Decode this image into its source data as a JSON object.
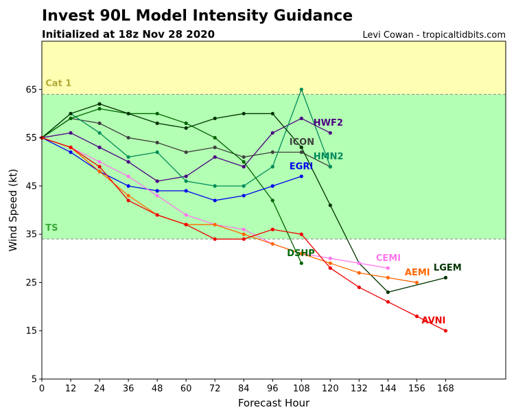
{
  "chart_data": {
    "type": "line",
    "title": "Invest 90L Model Intensity Guidance",
    "subtitle": "Initialized at 18z Nov 28 2020",
    "credit": "Levi Cowan - tropicaltidbits.com",
    "xlabel": "Forecast Hour",
    "ylabel": "Wind Speed (kt)",
    "xlim": [
      0,
      193
    ],
    "ylim": [
      5,
      75
    ],
    "xticks": [
      0,
      12,
      24,
      36,
      48,
      60,
      72,
      84,
      96,
      108,
      120,
      132,
      144,
      156,
      168
    ],
    "yticks": [
      5,
      15,
      25,
      35,
      45,
      55,
      65
    ],
    "bands": [
      {
        "label": "TS",
        "from": 34,
        "to": 64,
        "color": "#b3ffb3",
        "label_color": "#3aa83a"
      },
      {
        "label": "Cat 1",
        "from": 64,
        "to": 75,
        "color": "#ffffb3",
        "label_color": "#b3a93a"
      }
    ],
    "threshold_lines": [
      34,
      64
    ],
    "series": [
      {
        "name": "HWF2",
        "color": "#4b0082",
        "label_at": [
          113,
          57.5
        ],
        "x": [
          0,
          12,
          24,
          36,
          48,
          60,
          72,
          84,
          96,
          108,
          120
        ],
        "y": [
          55,
          56,
          53,
          50,
          46,
          47,
          51,
          49,
          56,
          59,
          56
        ]
      },
      {
        "name": "ICON",
        "color": "#404040",
        "label_at": [
          103,
          53.5
        ],
        "x": [
          0,
          12,
          24,
          36,
          48,
          60,
          72,
          84,
          96,
          108,
          120
        ],
        "y": [
          55,
          59,
          58,
          55,
          54,
          52,
          53,
          51,
          52,
          52,
          49
        ]
      },
      {
        "name": "HMN2",
        "color": "#008b5a",
        "label_at": [
          113,
          50.5
        ],
        "x": [
          0,
          12,
          24,
          36,
          48,
          60,
          72,
          84,
          96,
          108,
          120
        ],
        "y": [
          55,
          60,
          56,
          51,
          52,
          46,
          45,
          45,
          49,
          65,
          49
        ]
      },
      {
        "name": "DSHP",
        "color": "#006400",
        "label_at": [
          102,
          30.5
        ],
        "x": [
          0,
          12,
          24,
          36,
          48,
          60,
          72,
          84,
          96,
          108
        ],
        "y": [
          55,
          59,
          61,
          60,
          60,
          58,
          55,
          50,
          42,
          29
        ]
      },
      {
        "name": "LGEM",
        "color": "#003300",
        "label_at": [
          163,
          27.5
        ],
        "x": [
          0,
          12,
          24,
          36,
          48,
          60,
          72,
          84,
          96,
          108,
          120,
          132,
          144,
          168
        ],
        "y": [
          55,
          60,
          62,
          60,
          58,
          57,
          59,
          60,
          60,
          53,
          41,
          29,
          23,
          26
        ]
      },
      {
        "name": "EGRI",
        "color": "#0000ee",
        "label_at": [
          103,
          48.5
        ],
        "x": [
          0,
          12,
          24,
          36,
          48,
          60,
          72,
          84,
          96,
          108
        ],
        "y": [
          55,
          52,
          48,
          45,
          44,
          44,
          42,
          43,
          45,
          47
        ]
      },
      {
        "name": "CEMI",
        "color": "#ff77ee",
        "label_at": [
          139,
          29.5
        ],
        "x": [
          0,
          12,
          24,
          36,
          48,
          60,
          72,
          84,
          96,
          108,
          120,
          132,
          144
        ],
        "y": [
          55,
          53,
          50,
          47,
          43,
          39,
          37,
          36,
          33,
          31,
          30,
          29,
          28
        ]
      },
      {
        "name": "AEMI",
        "color": "#ff6600",
        "label_at": [
          151,
          26.5
        ],
        "x": [
          0,
          12,
          24,
          36,
          48,
          60,
          72,
          84,
          96,
          108,
          120,
          132,
          144,
          156
        ],
        "y": [
          55,
          53,
          48,
          43,
          39,
          37,
          37,
          35,
          33,
          31,
          29,
          27,
          26,
          25
        ]
      },
      {
        "name": "AVNI",
        "color": "#ee0000",
        "label_at": [
          158,
          16.5
        ],
        "x": [
          0,
          12,
          24,
          36,
          48,
          60,
          72,
          84,
          96,
          108,
          120,
          132,
          144,
          156,
          168
        ],
        "y": [
          55,
          53,
          49,
          42,
          39,
          37,
          34,
          34,
          36,
          35,
          28,
          24,
          21,
          18,
          15
        ]
      }
    ]
  }
}
